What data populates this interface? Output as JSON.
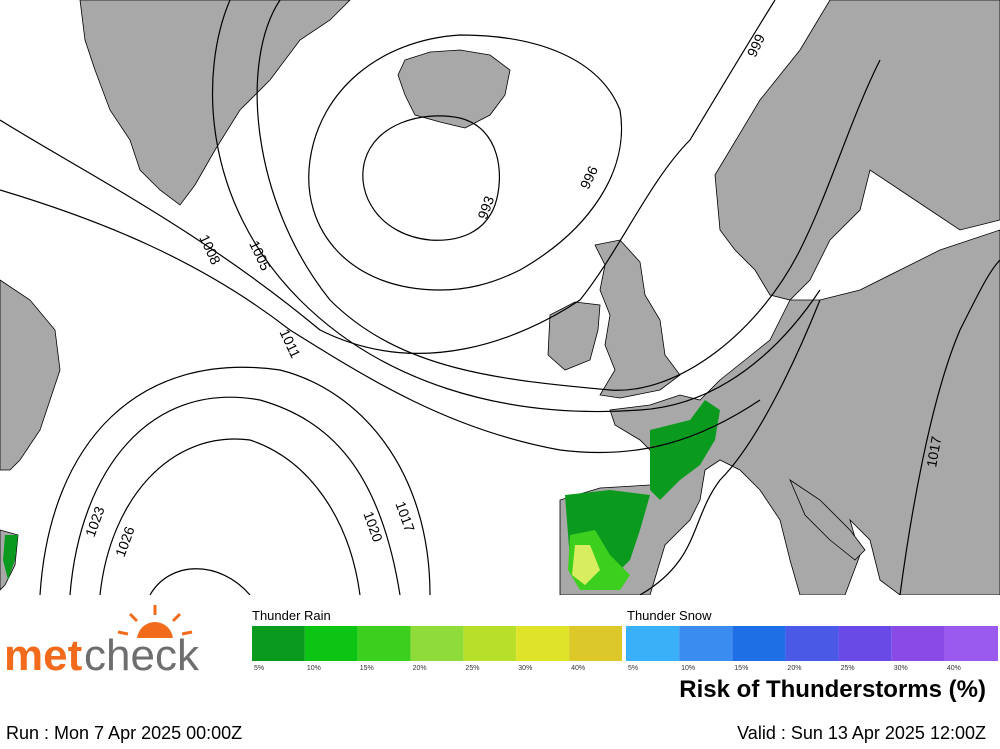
{
  "map": {
    "isobar_labels": [
      "999",
      "996",
      "993",
      "1008",
      "1005",
      "1011",
      "1017",
      "1023",
      "1026",
      "1020",
      "1017"
    ]
  },
  "logo": {
    "met": "met",
    "check": "check"
  },
  "legend": {
    "rain": {
      "title": "Thunder Rain",
      "items": [
        {
          "label": "5%",
          "color": "#0a9a1e"
        },
        {
          "label": "10%",
          "color": "#0cc414"
        },
        {
          "label": "15%",
          "color": "#3ccf1e"
        },
        {
          "label": "20%",
          "color": "#8edb3a"
        },
        {
          "label": "25%",
          "color": "#b8e02a"
        },
        {
          "label": "30%",
          "color": "#e0e428"
        },
        {
          "label": "40%",
          "color": "#dcc828"
        }
      ]
    },
    "snow": {
      "title": "Thunder Snow",
      "items": [
        {
          "label": "5%",
          "color": "#3ab0f8"
        },
        {
          "label": "10%",
          "color": "#3a8cf0"
        },
        {
          "label": "15%",
          "color": "#1e6ee6"
        },
        {
          "label": "20%",
          "color": "#4a5ae6"
        },
        {
          "label": "25%",
          "color": "#6a4ae6"
        },
        {
          "label": "30%",
          "color": "#8a4ae6"
        },
        {
          "label": "40%",
          "color": "#9a5af0"
        }
      ]
    }
  },
  "title": "Risk of Thunderstorms (%)",
  "run": "Run : Mon 7 Apr 2025 00:00Z",
  "valid": "Valid : Sun 13 Apr 2025 12:00Z"
}
